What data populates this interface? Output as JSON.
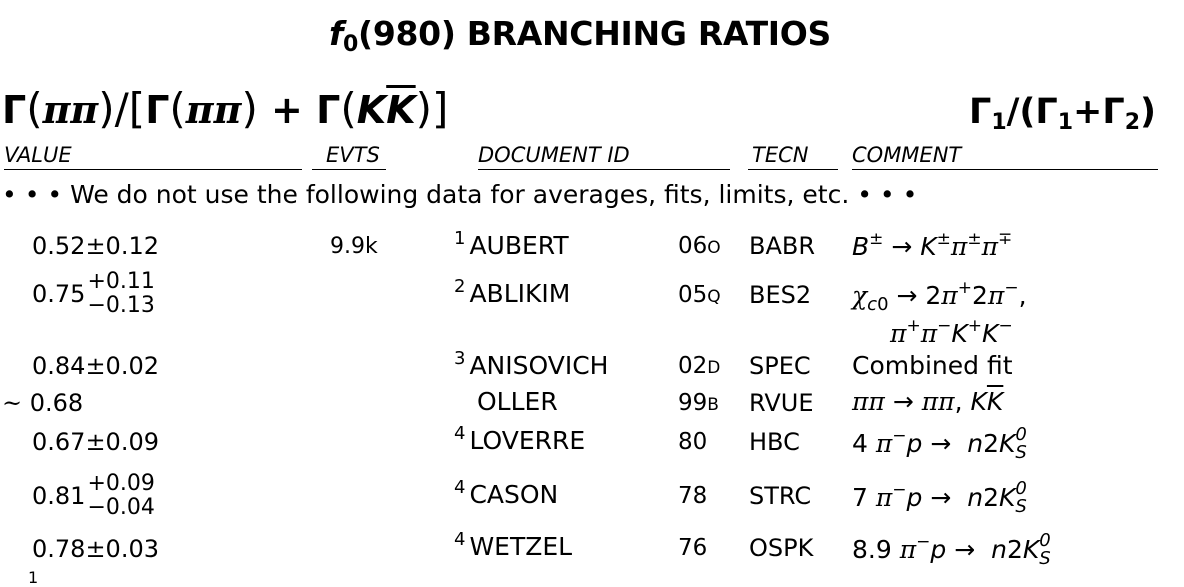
{
  "title": {
    "particle": "f",
    "subscript": "0",
    "rest": "(980) BRANCHING RATIOS"
  },
  "formula": {
    "text": "Γ(ππ)/[Γ(ππ)+Γ(KK)]"
  },
  "ratio": {
    "text": "Γ1/(Γ1+Γ2)",
    "g1": "Γ",
    "s1": "1",
    "mid": "/(Γ",
    "s2": "1",
    "plus": "+Γ",
    "s3": "2",
    "close": ")"
  },
  "headers": {
    "value": "VALUE",
    "evts": "EVTS",
    "document_id": "DOCUMENT ID",
    "tecn": "TECN",
    "comment": "COMMENT"
  },
  "note": "• • • We do not use the following data for averages, fits, limits, etc. • • •",
  "rows": [
    {
      "value": "0.52",
      "err": "0.12",
      "evts": "9.9k",
      "fn": "1",
      "doc": "AUBERT",
      "yr": "06",
      "yr_letter": "O",
      "tecn": "BABR",
      "comment": "B± → K±π±π∓"
    },
    {
      "value": "0.75",
      "err_plus": "+0.11",
      "err_minus": "−0.13",
      "evts": "",
      "fn": "2",
      "doc": "ABLIKIM",
      "yr": "05",
      "yr_letter": "Q",
      "tecn": "BES2",
      "comment": "χc0 → 2π+2π−,",
      "comment2": "π+π−K+K−"
    },
    {
      "value": "0.84",
      "err": "0.02",
      "evts": "",
      "fn": "3",
      "doc": "ANISOVICH",
      "yr": "02",
      "yr_letter": "D",
      "tecn": "SPEC",
      "comment": "Combined fit"
    },
    {
      "prefix": "~",
      "value": "0.68",
      "evts": "",
      "fn": "",
      "doc": "OLLER",
      "yr": "99",
      "yr_letter": "B",
      "tecn": "RVUE",
      "comment": "ππ → ππ, KK"
    },
    {
      "value": "0.67",
      "err": "0.09",
      "evts": "",
      "fn": "4",
      "doc": "LOVERRE",
      "yr": "80",
      "yr_letter": "",
      "tecn": "HBC",
      "comment": "4 π−p → n2K0S"
    },
    {
      "value": "0.81",
      "err_plus": "+0.09",
      "err_minus": "−0.04",
      "evts": "",
      "fn": "4",
      "doc": "CASON",
      "yr": "78",
      "yr_letter": "",
      "tecn": "STRC",
      "comment": "7 π−p → n2K0S"
    },
    {
      "value": "0.78",
      "err": "0.03",
      "evts": "",
      "fn": "4",
      "doc": "WETZEL",
      "yr": "76",
      "yr_letter": "",
      "tecn": "OSPK",
      "comment": "8.9 π−p → n2K0S"
    }
  ],
  "footnote_marker": "1"
}
